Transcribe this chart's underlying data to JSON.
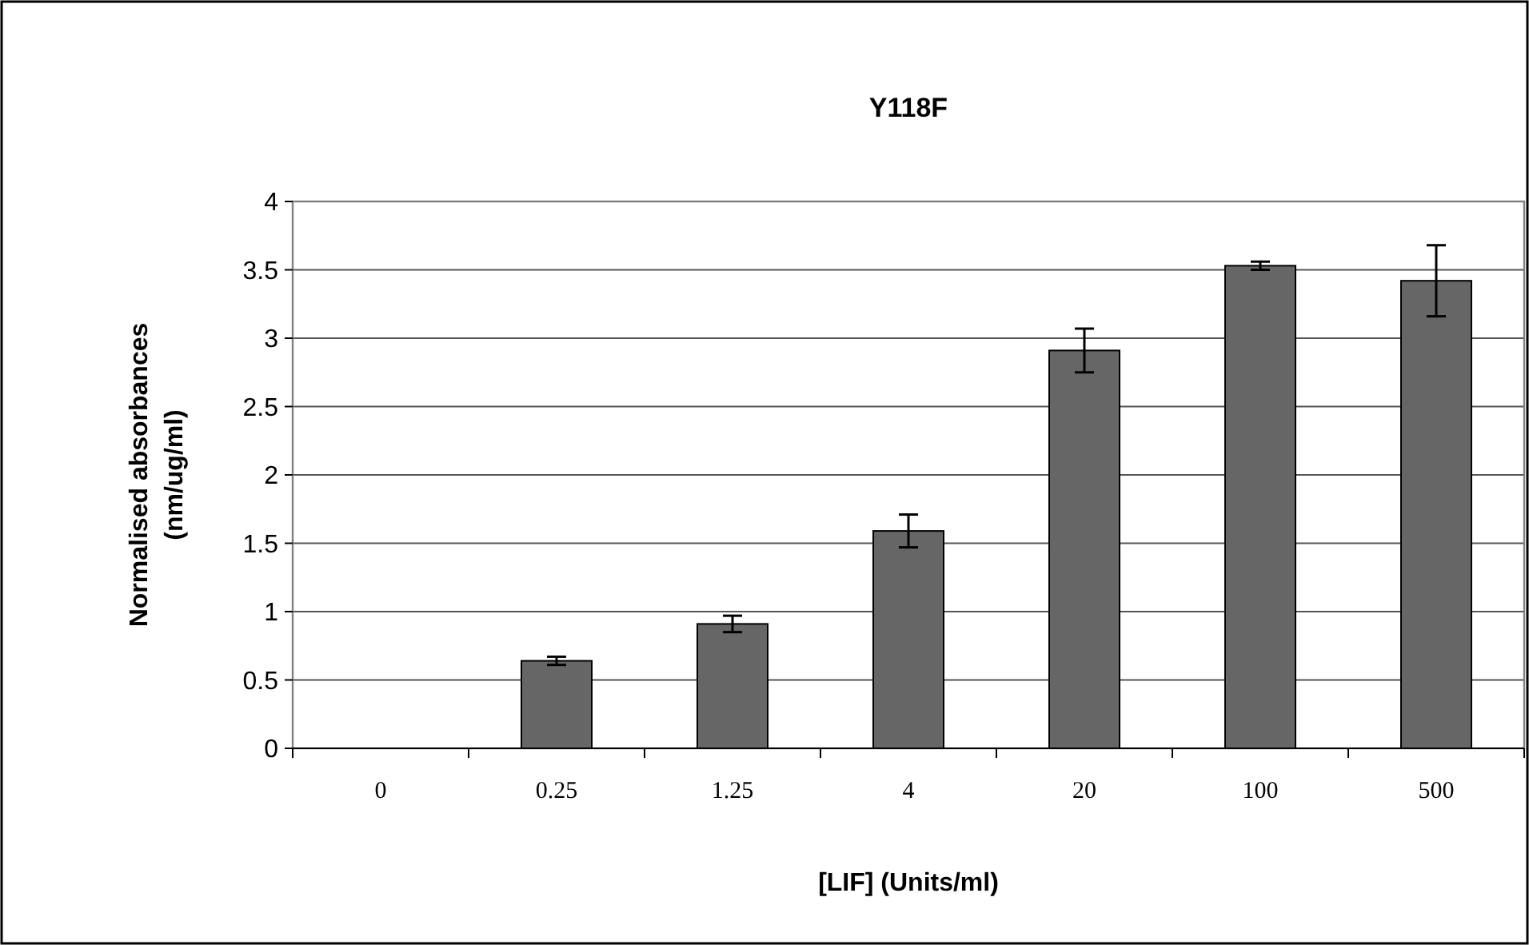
{
  "chart_data": {
    "type": "bar",
    "title": "Y118F",
    "xlabel": "[LIF] (Units/ml)",
    "ylabel": "Normalised absorbances\n(nm/ug/ml)",
    "categories": [
      "0",
      "0.25",
      "1.25",
      "4",
      "20",
      "100",
      "500"
    ],
    "values": [
      0,
      0.64,
      0.91,
      1.59,
      2.91,
      3.53,
      3.42
    ],
    "errors": [
      null,
      0.03,
      0.06,
      0.12,
      0.16,
      0.03,
      0.26
    ],
    "color": "#666666",
    "ylim": [
      0,
      4
    ],
    "yticks": [
      0,
      0.5,
      1,
      1.5,
      2,
      2.5,
      3,
      3.5,
      4
    ],
    "grid": "y"
  }
}
